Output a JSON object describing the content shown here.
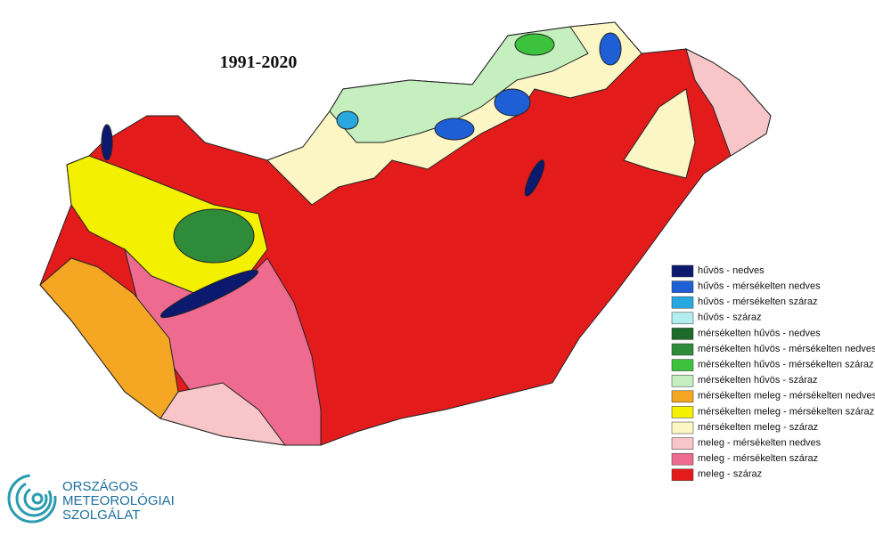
{
  "title": "1991-2020",
  "legend": {
    "items": [
      {
        "label": "hűvös - nedves",
        "color": "#0b1a6e"
      },
      {
        "label": "hűvös - mérsékelten nedves",
        "color": "#1f5fd6"
      },
      {
        "label": "hűvös - mérsékelten száraz",
        "color": "#29a8e0"
      },
      {
        "label": "hűvös - száraz",
        "color": "#b2eef0"
      },
      {
        "label": "mérsékelten hűvös - nedves",
        "color": "#1d6b2a"
      },
      {
        "label": "mérsékelten hűvös - mérsékelten nedves",
        "color": "#2e8b3a"
      },
      {
        "label": "mérsékelten hűvös - mérsékelten száraz",
        "color": "#3cc23c"
      },
      {
        "label": "mérsékelten hűvös - száraz",
        "color": "#c6efbf"
      },
      {
        "label": "mérsékelten meleg - mérsékelten nedves",
        "color": "#f5a623"
      },
      {
        "label": "mérsékelten meleg - mérsékelten száraz",
        "color": "#f3f000"
      },
      {
        "label": "mérsékelten meleg - száraz",
        "color": "#fbf6c4"
      },
      {
        "label": "meleg - mérsékelten nedves",
        "color": "#f8c6c9"
      },
      {
        "label": "meleg - mérsékelten száraz",
        "color": "#ef6a8f"
      },
      {
        "label": "meleg - száraz",
        "color": "#e41b1b"
      }
    ]
  },
  "logo": {
    "lines": [
      "ORSZÁGOS",
      "METEOROLÓGIAI",
      "SZOLGÁLAT"
    ]
  }
}
